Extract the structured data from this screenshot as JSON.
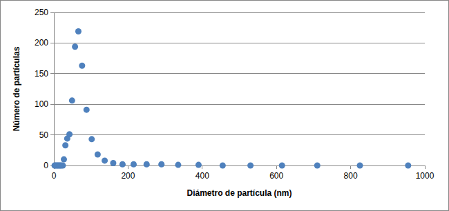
{
  "chart_data": {
    "type": "scatter",
    "x_label": "Diámetro de partícula (nm)",
    "y_label": "Número de partículas",
    "x": [
      2,
      5,
      8,
      11,
      14,
      17,
      20,
      24,
      27,
      31,
      36,
      42,
      49,
      57,
      66,
      76,
      88,
      102,
      118,
      137,
      160,
      185,
      215,
      250,
      290,
      335,
      390,
      455,
      530,
      615,
      710,
      825,
      955
    ],
    "values": [
      0,
      0,
      0,
      0,
      0,
      0,
      0,
      0,
      10,
      33,
      44,
      51,
      106,
      194,
      219,
      163,
      91,
      43,
      18,
      8,
      4,
      2,
      2,
      2,
      2,
      1,
      1,
      0,
      0,
      0,
      0,
      0,
      0
    ],
    "color": "#4f81bd",
    "marker": "circle",
    "xlim": [
      0,
      1000
    ],
    "xticks": [
      0,
      200,
      400,
      600,
      800,
      1000
    ],
    "ylim": [
      0,
      250
    ],
    "yticks": [
      0,
      50,
      100,
      150,
      200,
      250
    ],
    "grid": true
  }
}
